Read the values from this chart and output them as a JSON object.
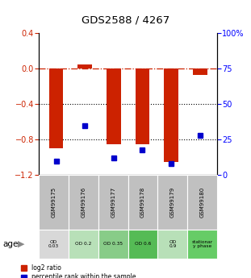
{
  "title": "GDS2588 / 4267",
  "samples": [
    "GSM99175",
    "GSM99176",
    "GSM99177",
    "GSM99178",
    "GSM99179",
    "GSM99180"
  ],
  "log2_ratio": [
    -0.9,
    0.05,
    -0.85,
    -0.85,
    -1.05,
    -0.07
  ],
  "percentile_rank": [
    10,
    35,
    12,
    18,
    8,
    28
  ],
  "ylim_left": [
    -1.2,
    0.4
  ],
  "ylim_right": [
    0,
    100
  ],
  "yticks_left": [
    0.4,
    0.0,
    -0.4,
    -0.8,
    -1.2
  ],
  "yticks_right": [
    100,
    75,
    50,
    25,
    0
  ],
  "bar_color": "#cc2200",
  "dot_color": "#0000cc",
  "age_labels": [
    "OD\n0.03",
    "OD 0.2",
    "OD 0.35",
    "OD 0.6",
    "OD\n0.9",
    "stationar\ny phase"
  ],
  "age_bg_colors": [
    "#d8d8d8",
    "#b8e0b8",
    "#88cc88",
    "#55bb55",
    "#b8e0b8",
    "#66cc66"
  ],
  "sample_bg_color": "#c0c0c0",
  "legend_red_label": "log2 ratio",
  "legend_blue_label": "percentile rank within the sample"
}
